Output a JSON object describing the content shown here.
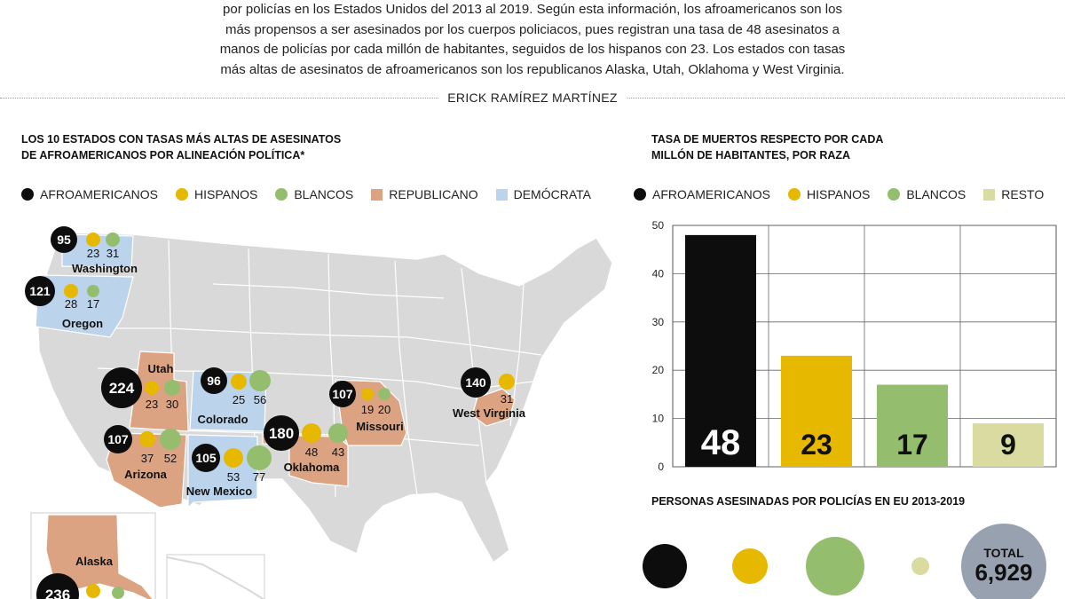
{
  "intro": {
    "lines": [
      "por policías en los Estados Unidos del 2013 al 2019. Según esta información, los afroamericanos son los",
      "más propensos a ser asesinados por los cuerpos policiacos, pues registran una tasa de 48 asesinatos a",
      "manos de policías por cada millón de habitantes, seguidos de los hispanos con 23. Los estados con tasas",
      "más altas de asesinatos de afroamericanos son los republicanos Alaska, Utah, Oklahoma y West Virginia."
    ]
  },
  "byline": "ERICK RAMÍREZ MARTÍNEZ",
  "colors": {
    "afro": "#0d0d0d",
    "hispanos": "#e6b800",
    "blancos": "#94be6e",
    "resto": "#d9dba1",
    "republicano": "#dba382",
    "democrata": "#bcd3ec",
    "map_gray": "#d9d9d9",
    "total": "#98a1af"
  },
  "map_section": {
    "title_line1": "LOS 10 ESTADOS CON TASAS MÁS ALTAS DE ASESINATOS",
    "title_line2": "DE AFROAMERICANOS POR ALINEACIÓN POLÍTICA*",
    "legend": {
      "afro": "AFROAMERICANOS",
      "hispanos": "HISPANOS",
      "blancos": "BLANCOS",
      "republicano": "REPUBLICANO",
      "democrata": "DEMÓCRATA"
    }
  },
  "bar_section": {
    "title_line1": "TASA DE MUERTOS RESPECTO POR CADA",
    "title_line2": "MILLÓN DE HABITANTES, POR RAZA",
    "legend": {
      "afro": "AFROAMERICANOS",
      "hispanos": "HISPANOS",
      "blancos": "BLANCOS",
      "resto": "RESTO"
    }
  },
  "persons_section": {
    "title": "PERSONAS ASESINADAS POR POLICÍAS EN EU 2013-2019",
    "total_label": "TOTAL",
    "total_value": "6,929"
  },
  "chart_data": [
    {
      "type": "bar",
      "categories": [
        "AFROAMERICANOS",
        "HISPANOS",
        "BLANCOS",
        "RESTO"
      ],
      "values": [
        48,
        23,
        17,
        9
      ],
      "value_labels": [
        "48",
        "23",
        "17",
        "9"
      ],
      "ylim": [
        0,
        50
      ],
      "yticks": [
        0,
        10,
        20,
        30,
        40,
        50
      ],
      "grid": true,
      "legend": "top"
    },
    {
      "type": "map",
      "legend": "top",
      "states": [
        {
          "name": "Washington",
          "party": "democrata",
          "afro": "95",
          "hispanos": "23",
          "blancos": "31"
        },
        {
          "name": "Oregon",
          "party": "democrata",
          "afro": "121",
          "hispanos": "28",
          "blancos": "17"
        },
        {
          "name": "Utah",
          "party": "republicano",
          "afro": "224",
          "hispanos": "23",
          "blancos": "30"
        },
        {
          "name": "Colorado",
          "party": "democrata",
          "afro": "96",
          "hispanos": "25",
          "blancos": "56"
        },
        {
          "name": "Arizona",
          "party": "republicano",
          "afro": "107",
          "hispanos": "37",
          "blancos": "52"
        },
        {
          "name": "New Mexico",
          "party": "democrata",
          "afro": "105",
          "hispanos": "53",
          "blancos": "77"
        },
        {
          "name": "Oklahoma",
          "party": "republicano",
          "afro": "180",
          "hispanos": "48",
          "blancos": "43"
        },
        {
          "name": "Missouri",
          "party": "republicano",
          "afro": "107",
          "hispanos": "19",
          "blancos": "20"
        },
        {
          "name": "West Virginia",
          "party": "republicano",
          "afro": "140",
          "hispanos": "31",
          "blancos": ""
        },
        {
          "name": "Alaska",
          "party": "republicano",
          "afro": "236",
          "hispanos": "",
          "blancos": ""
        }
      ]
    }
  ]
}
